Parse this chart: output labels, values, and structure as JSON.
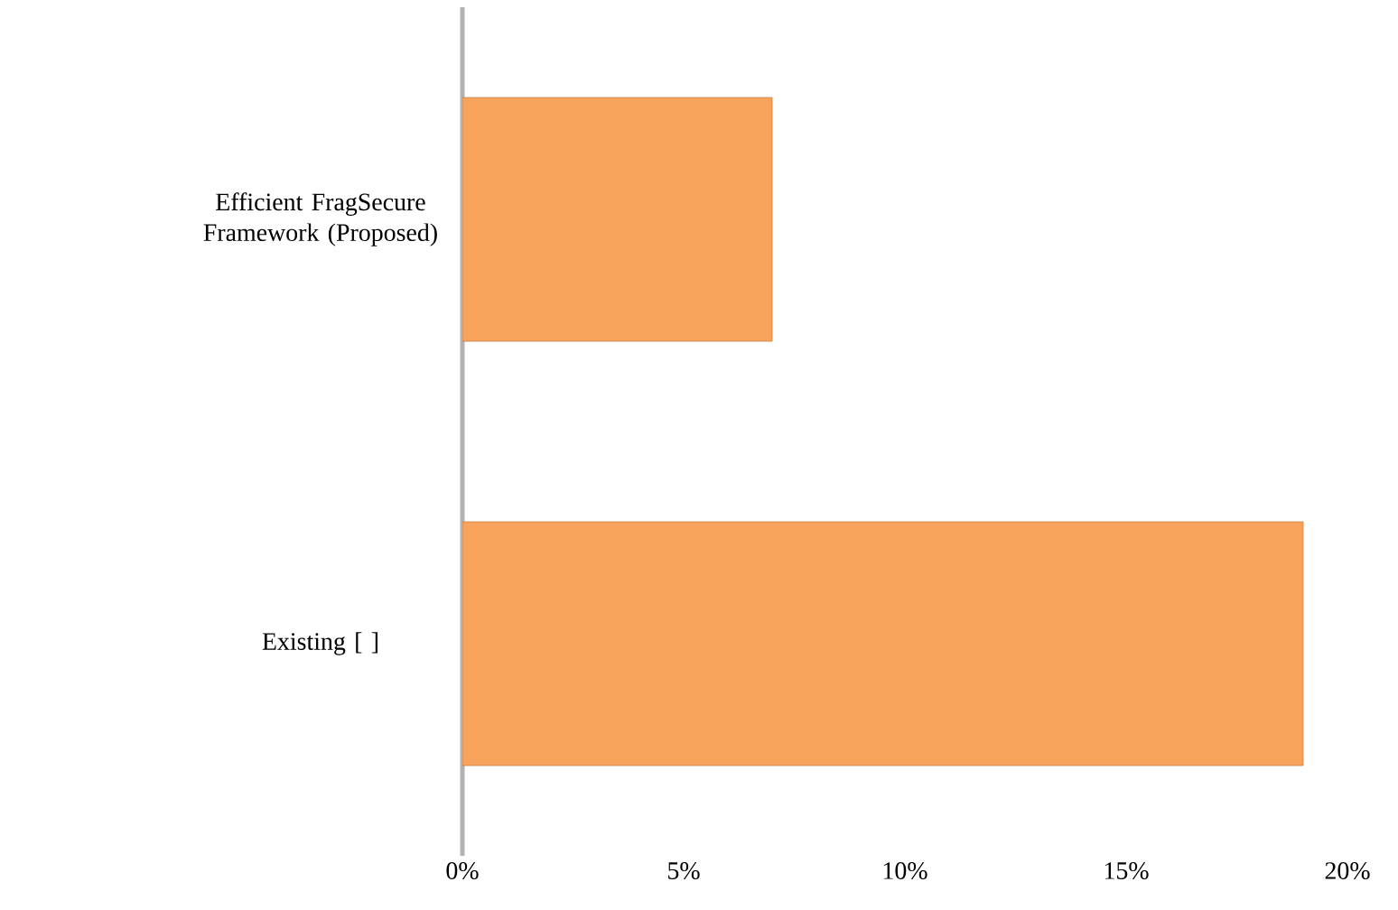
{
  "chart_data": {
    "type": "bar",
    "orientation": "horizontal",
    "categories": [
      "Efficient FragSecure Framework (Proposed)",
      "Existing [ ]"
    ],
    "values": [
      7,
      19
    ],
    "color": "#f7a35c",
    "xlim": [
      0,
      20
    ],
    "xticks": [
      {
        "value": 0,
        "label": "0%"
      },
      {
        "value": 5,
        "label": "5%"
      },
      {
        "value": 10,
        "label": "10%"
      },
      {
        "value": 15,
        "label": "15%"
      },
      {
        "value": 20,
        "label": "20%"
      }
    ],
    "grid": false
  }
}
